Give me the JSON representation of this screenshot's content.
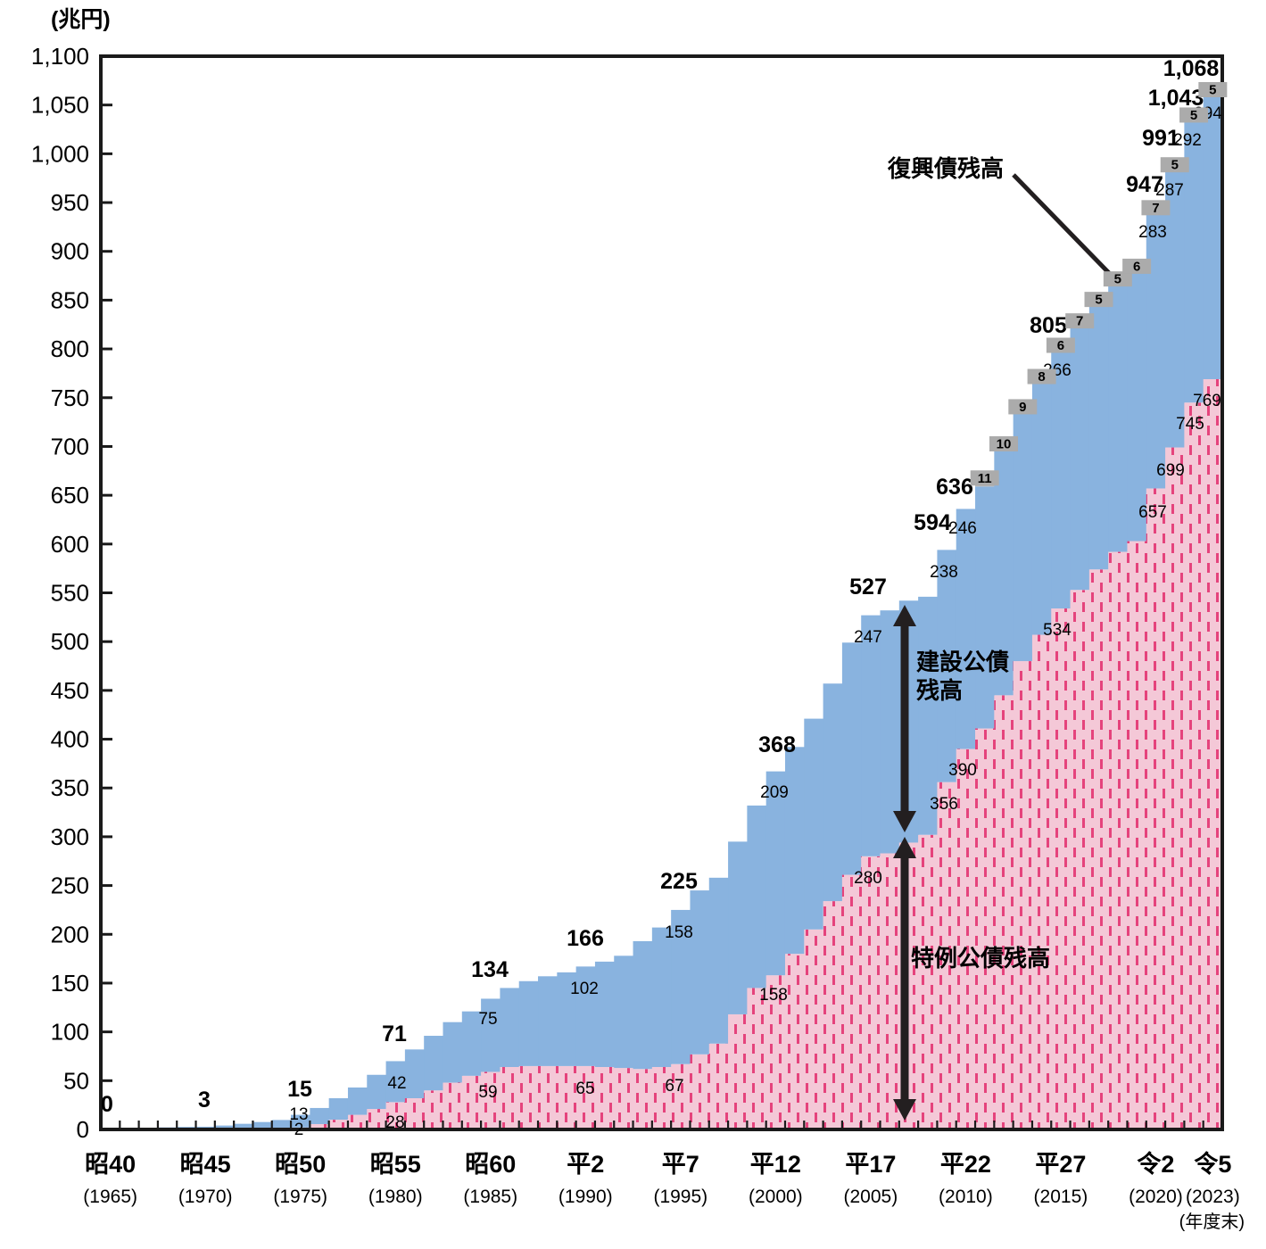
{
  "unit_label": "(兆円)",
  "axis_note": "(年度末)",
  "annotations": {
    "reconstruction": "復興債残高",
    "construction": [
      "建設公債",
      "残高"
    ],
    "special": "特例公債残高"
  },
  "chart_data": {
    "type": "area",
    "title": "",
    "xlabel": "(年度末)",
    "ylabel": "(兆円)",
    "ylim": [
      0,
      1100
    ],
    "ytick_step": 50,
    "grid": false,
    "stack_order": [
      "special",
      "construction",
      "reconstruction"
    ],
    "colors": {
      "construction": "#89B3DF",
      "special_base": "#F4C8D7",
      "special_dash": "#E5437C",
      "reconstruction": "#B5B5B5",
      "chip": "#ABABAB",
      "axis": "#1A1A1A",
      "arrow": "#231F20"
    },
    "x": [
      1965,
      1966,
      1967,
      1968,
      1969,
      1970,
      1971,
      1972,
      1973,
      1974,
      1975,
      1976,
      1977,
      1978,
      1979,
      1980,
      1981,
      1982,
      1983,
      1984,
      1985,
      1986,
      1987,
      1988,
      1989,
      1990,
      1991,
      1992,
      1993,
      1994,
      1995,
      1996,
      1997,
      1998,
      1999,
      2000,
      2001,
      2002,
      2003,
      2004,
      2005,
      2006,
      2007,
      2008,
      2009,
      2010,
      2011,
      2012,
      2013,
      2014,
      2015,
      2016,
      2017,
      2018,
      2019,
      2020,
      2021,
      2022,
      2023
    ],
    "series": [
      {
        "key": "construction",
        "name": "建設公債残高",
        "values": [
          0.2,
          0.9,
          1.5,
          2.1,
          2.6,
          2.8,
          4,
          5.8,
          7.6,
          9.7,
          13,
          16.5,
          22,
          28,
          35,
          42,
          50,
          56,
          62,
          66,
          75,
          81,
          87,
          92,
          96,
          102,
          108,
          115,
          131,
          143,
          158,
          168,
          170,
          177,
          187,
          209,
          212,
          216,
          223,
          238,
          247,
          249,
          248,
          244,
          238,
          246,
          248,
          250,
          254,
          259,
          266,
          271,
          274,
          277,
          278,
          283,
          287,
          292,
          294
        ]
      },
      {
        "key": "special",
        "name": "特例公債残高",
        "values": [
          0,
          0,
          0,
          0,
          0,
          0,
          0,
          0,
          0,
          0,
          2,
          5.5,
          10,
          15,
          21,
          28,
          32,
          40,
          48,
          55,
          59,
          64,
          65,
          65,
          65,
          65,
          64,
          63,
          62,
          64,
          67,
          77,
          88,
          118,
          145,
          158,
          180,
          205,
          234,
          261,
          280,
          283,
          294,
          302,
          356,
          390,
          411,
          445,
          480,
          507,
          534,
          553,
          574,
          592,
          603,
          657,
          699,
          745,
          769
        ]
      },
      {
        "key": "reconstruction",
        "name": "復興債残高",
        "values": [
          0,
          0,
          0,
          0,
          0,
          0,
          0,
          0,
          0,
          0,
          0,
          0,
          0,
          0,
          0,
          0,
          0,
          0,
          0,
          0,
          0,
          0,
          0,
          0,
          0,
          0,
          0,
          0,
          0,
          0,
          0,
          0,
          0,
          0,
          0,
          0,
          0,
          0,
          0,
          0,
          0,
          0,
          0,
          0,
          0,
          0,
          11,
          10,
          9,
          8,
          6,
          7,
          5,
          5,
          6,
          7,
          5,
          5,
          5
        ]
      }
    ],
    "xticks": [
      {
        "x": 1965,
        "era": "昭40",
        "year": "(1965)"
      },
      {
        "x": 1970,
        "era": "昭45",
        "year": "(1970)"
      },
      {
        "x": 1975,
        "era": "昭50",
        "year": "(1975)"
      },
      {
        "x": 1980,
        "era": "昭55",
        "year": "(1980)"
      },
      {
        "x": 1985,
        "era": "昭60",
        "year": "(1985)"
      },
      {
        "x": 1990,
        "era": "平2",
        "year": "(1990)"
      },
      {
        "x": 1995,
        "era": "平7",
        "year": "(1995)"
      },
      {
        "x": 2000,
        "era": "平12",
        "year": "(2000)"
      },
      {
        "x": 2005,
        "era": "平17",
        "year": "(2005)"
      },
      {
        "x": 2010,
        "era": "平22",
        "year": "(2010)"
      },
      {
        "x": 2015,
        "era": "平27",
        "year": "(2015)"
      },
      {
        "x": 2020,
        "era": "令2",
        "year": "(2020)"
      },
      {
        "x": 2023,
        "era": "令5",
        "year": "(2023)"
      }
    ],
    "value_labels": {
      "total": [
        {
          "x": 1965,
          "text": "0"
        },
        {
          "x": 1970,
          "text": "3"
        },
        {
          "x": 1975,
          "text": "15"
        },
        {
          "x": 1980,
          "text": "71"
        },
        {
          "x": 1985,
          "text": "134"
        },
        {
          "x": 1990,
          "text": "166"
        },
        {
          "x": 1995,
          "text": "225"
        },
        {
          "x": 2000,
          "text": "368"
        },
        {
          "x": 2005,
          "text": "527"
        },
        {
          "x": 2009,
          "text": "594"
        },
        {
          "x": 2010,
          "text": "636"
        },
        {
          "x": 2015,
          "text": "805"
        },
        {
          "x": 2020,
          "text": "947"
        },
        {
          "x": 2021,
          "text": "991"
        },
        {
          "x": 2022,
          "text": "1,043"
        },
        {
          "x": 2023,
          "text": "1,068",
          "bold": true
        }
      ],
      "construction": [
        {
          "x": 1975,
          "text": "13"
        },
        {
          "x": 1980,
          "text": "42"
        },
        {
          "x": 1985,
          "text": "75"
        },
        {
          "x": 1990,
          "text": "102"
        },
        {
          "x": 1995,
          "text": "158"
        },
        {
          "x": 2000,
          "text": "209"
        },
        {
          "x": 2005,
          "text": "247"
        },
        {
          "x": 2009,
          "text": "238"
        },
        {
          "x": 2010,
          "text": "246"
        },
        {
          "x": 2015,
          "text": "266"
        },
        {
          "x": 2020,
          "text": "283"
        },
        {
          "x": 2021,
          "text": "287"
        },
        {
          "x": 2022,
          "text": "292"
        },
        {
          "x": 2023,
          "text": "294"
        }
      ],
      "special": [
        {
          "x": 1975,
          "text": "2"
        },
        {
          "x": 1980,
          "text": "28"
        },
        {
          "x": 1985,
          "text": "59"
        },
        {
          "x": 1990,
          "text": "65"
        },
        {
          "x": 1995,
          "text": "67"
        },
        {
          "x": 2000,
          "text": "158"
        },
        {
          "x": 2005,
          "text": "280"
        },
        {
          "x": 2009,
          "text": "356"
        },
        {
          "x": 2010,
          "text": "390"
        },
        {
          "x": 2015,
          "text": "534"
        },
        {
          "x": 2020,
          "text": "657"
        },
        {
          "x": 2021,
          "text": "699"
        },
        {
          "x": 2022,
          "text": "745"
        },
        {
          "x": 2023,
          "text": "769"
        }
      ],
      "reconstruction": [
        {
          "x": 2011,
          "text": "11"
        },
        {
          "x": 2012,
          "text": "10"
        },
        {
          "x": 2013,
          "text": "9"
        },
        {
          "x": 2014,
          "text": "8"
        },
        {
          "x": 2015,
          "text": "6"
        },
        {
          "x": 2016,
          "text": "7"
        },
        {
          "x": 2017,
          "text": "5"
        },
        {
          "x": 2018,
          "text": "5"
        },
        {
          "x": 2019,
          "text": "6"
        },
        {
          "x": 2020,
          "text": "7"
        },
        {
          "x": 2021,
          "text": "5"
        },
        {
          "x": 2022,
          "text": "5"
        },
        {
          "x": 2023,
          "text": "5"
        }
      ]
    }
  }
}
